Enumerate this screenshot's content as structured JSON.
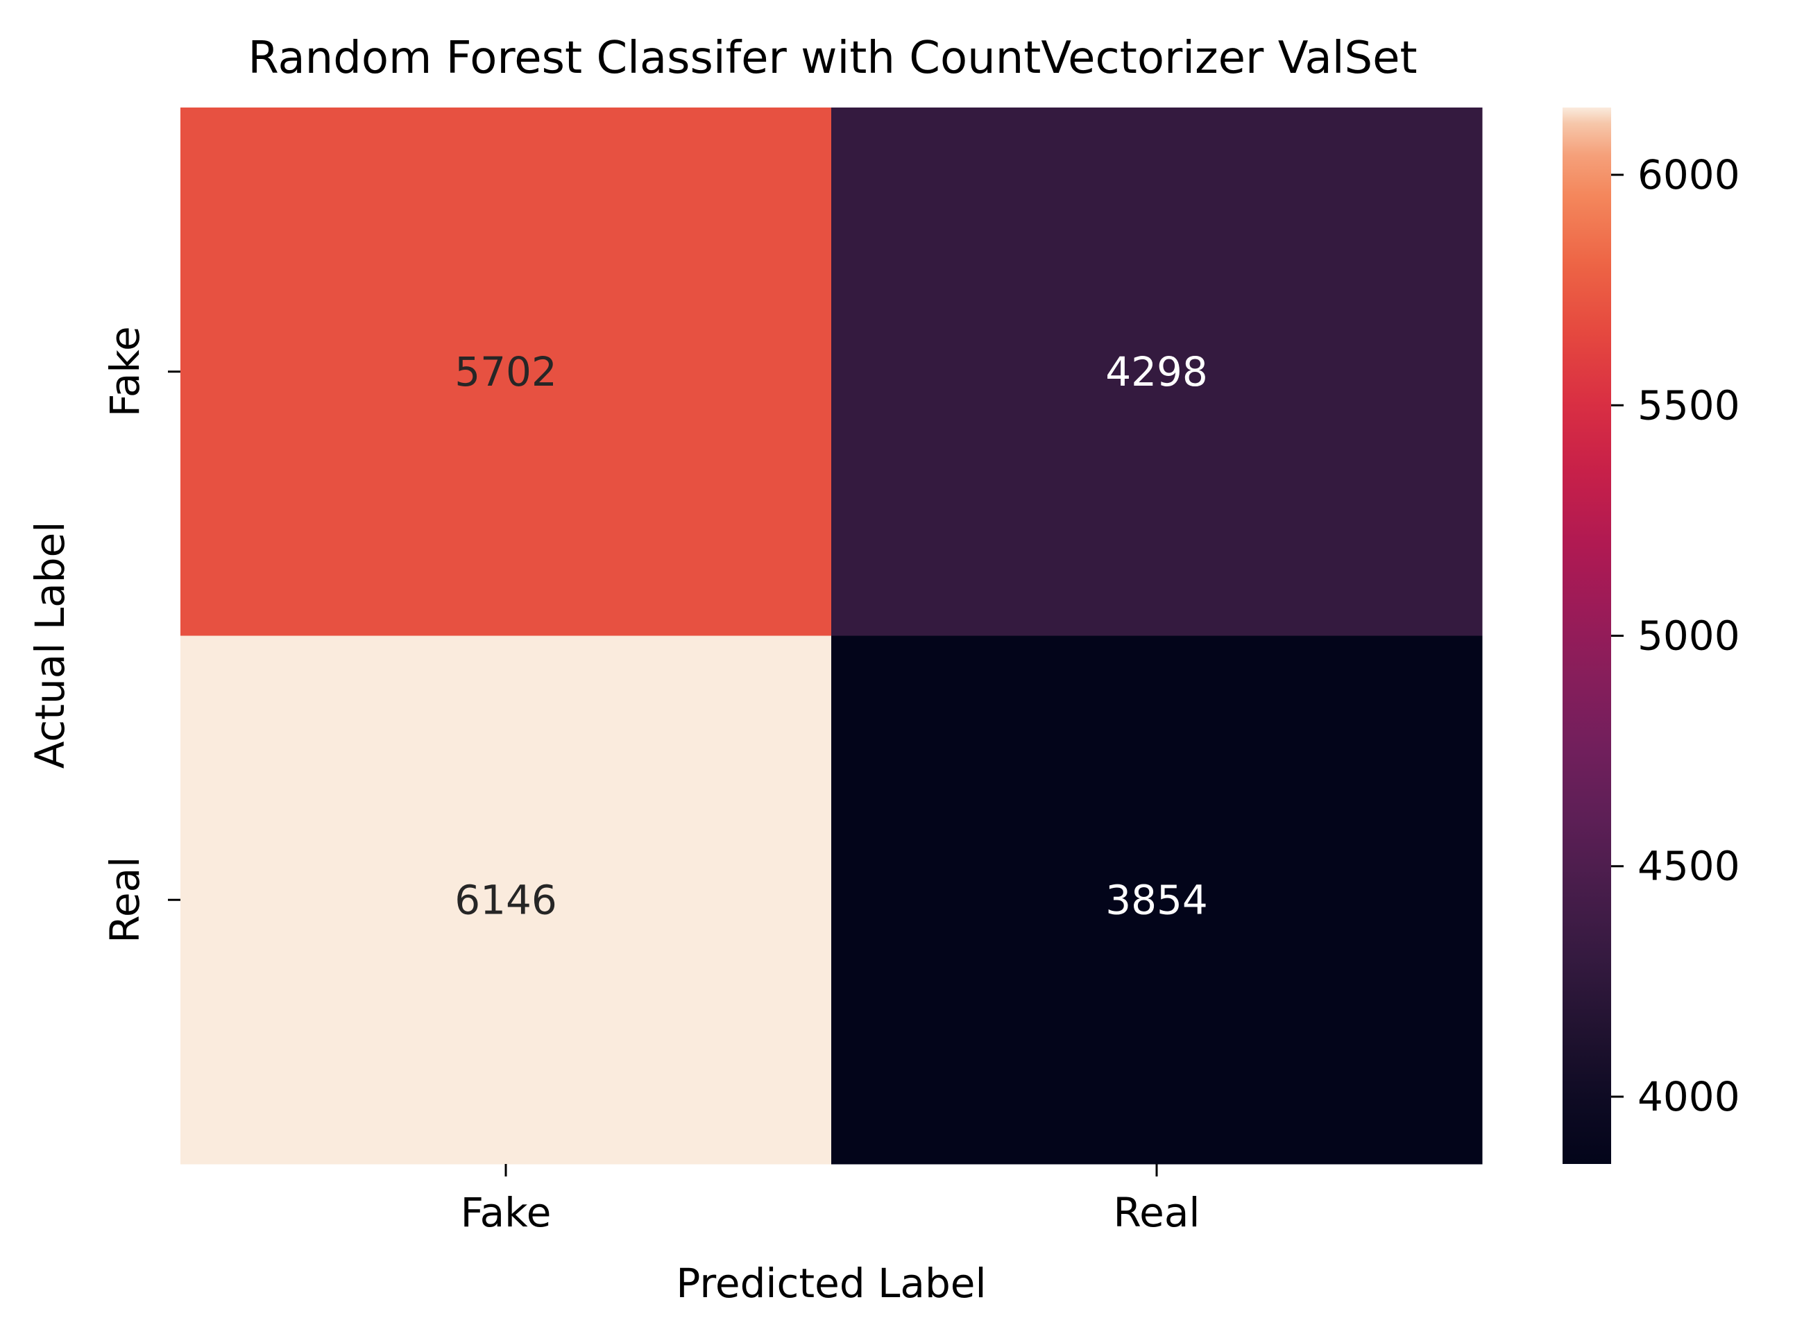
{
  "chart_data": {
    "type": "heatmap",
    "title": "Random Forest Classifer with CountVectorizer ValSet",
    "xlabel": "Predicted Label",
    "ylabel": "Actual Label",
    "x_categories": [
      "Fake",
      "Real"
    ],
    "y_categories": [
      "Fake",
      "Real"
    ],
    "values": [
      [
        5702,
        4298
      ],
      [
        6146,
        3854
      ]
    ],
    "colorbar": {
      "range": [
        3854,
        6146
      ],
      "ticks": [
        "4000",
        "4500",
        "5000",
        "5500",
        "6000"
      ],
      "tick_values": [
        4000,
        4500,
        5000,
        5500,
        6000
      ],
      "colormap": "rocket"
    },
    "annotation_colors": {
      "light_cell": "#262626",
      "dark_cell": "#ffffff"
    },
    "grid": false
  }
}
